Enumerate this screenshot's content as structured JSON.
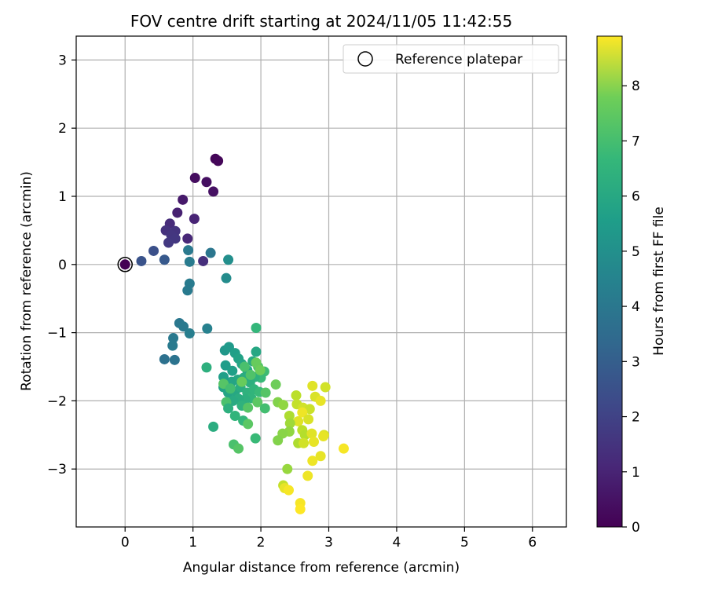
{
  "chart_data": {
    "type": "scatter",
    "title": "FOV centre drift starting at 2024/11/05 11:42:55",
    "xlabel": "Angular distance from reference (arcmin)",
    "ylabel": "Rotation from reference (arcmin)",
    "xlim": [
      -0.72,
      6.5
    ],
    "ylim": [
      -3.85,
      3.35
    ],
    "xticks": [
      0,
      1,
      2,
      3,
      4,
      5,
      6
    ],
    "yticks": [
      -3,
      -2,
      -1,
      0,
      1,
      2,
      3
    ],
    "xtick_labels": [
      "0",
      "1",
      "2",
      "3",
      "4",
      "5",
      "6"
    ],
    "ytick_labels": [
      "−3",
      "−2",
      "−1",
      "0",
      "1",
      "2",
      "3"
    ],
    "grid": true,
    "legend": {
      "position": "top-right",
      "label": "Reference platepar"
    },
    "reference_point": {
      "x": 0,
      "y": 0
    },
    "colorbar": {
      "label": "Hours from first FF file",
      "range": [
        0,
        8.9
      ],
      "ticks": [
        0,
        1,
        2,
        3,
        4,
        5,
        6,
        7,
        8
      ],
      "tick_labels": [
        "0",
        "1",
        "2",
        "3",
        "4",
        "5",
        "6",
        "7",
        "8"
      ],
      "colormap": "viridis"
    },
    "points": [
      {
        "x": 0.0,
        "y": 0.0,
        "h": 0.0
      },
      {
        "x": 1.33,
        "y": 1.55,
        "h": 0.1
      },
      {
        "x": 1.37,
        "y": 1.52,
        "h": 0.15
      },
      {
        "x": 1.03,
        "y": 1.27,
        "h": 0.3
      },
      {
        "x": 1.2,
        "y": 1.21,
        "h": 0.35
      },
      {
        "x": 1.3,
        "y": 1.07,
        "h": 0.4
      },
      {
        "x": 0.85,
        "y": 0.95,
        "h": 0.6
      },
      {
        "x": 0.77,
        "y": 0.76,
        "h": 0.8
      },
      {
        "x": 1.02,
        "y": 0.67,
        "h": 0.9
      },
      {
        "x": 0.66,
        "y": 0.6,
        "h": 1.1
      },
      {
        "x": 0.6,
        "y": 0.5,
        "h": 1.3
      },
      {
        "x": 0.74,
        "y": 0.49,
        "h": 1.35
      },
      {
        "x": 0.68,
        "y": 0.43,
        "h": 1.4
      },
      {
        "x": 0.74,
        "y": 0.38,
        "h": 1.45
      },
      {
        "x": 0.64,
        "y": 0.32,
        "h": 1.5
      },
      {
        "x": 0.92,
        "y": 0.38,
        "h": 1.0
      },
      {
        "x": 1.15,
        "y": 0.05,
        "h": 1.2
      },
      {
        "x": 0.42,
        "y": 0.2,
        "h": 2.2
      },
      {
        "x": 0.24,
        "y": 0.05,
        "h": 2.3
      },
      {
        "x": 0.58,
        "y": 0.07,
        "h": 2.5
      },
      {
        "x": 0.93,
        "y": 0.21,
        "h": 3.6
      },
      {
        "x": 0.95,
        "y": 0.04,
        "h": 3.7
      },
      {
        "x": 1.26,
        "y": 0.17,
        "h": 3.5
      },
      {
        "x": 1.52,
        "y": 0.07,
        "h": 4.4
      },
      {
        "x": 0.95,
        "y": -0.28,
        "h": 3.7
      },
      {
        "x": 0.92,
        "y": -0.38,
        "h": 3.65
      },
      {
        "x": 1.49,
        "y": -0.2,
        "h": 4.3
      },
      {
        "x": 0.8,
        "y": -0.86,
        "h": 3.55
      },
      {
        "x": 0.86,
        "y": -0.91,
        "h": 3.6
      },
      {
        "x": 1.21,
        "y": -0.94,
        "h": 3.9
      },
      {
        "x": 0.95,
        "y": -1.01,
        "h": 3.8
      },
      {
        "x": 0.71,
        "y": -1.08,
        "h": 3.6
      },
      {
        "x": 0.7,
        "y": -1.19,
        "h": 3.65
      },
      {
        "x": 0.58,
        "y": -1.39,
        "h": 3.3
      },
      {
        "x": 0.73,
        "y": -1.4,
        "h": 3.4
      },
      {
        "x": 1.93,
        "y": -0.93,
        "h": 5.9
      },
      {
        "x": 1.47,
        "y": -1.26,
        "h": 4.7
      },
      {
        "x": 1.53,
        "y": -1.21,
        "h": 4.8
      },
      {
        "x": 1.62,
        "y": -1.3,
        "h": 5.0
      },
      {
        "x": 1.67,
        "y": -1.38,
        "h": 5.1
      },
      {
        "x": 1.48,
        "y": -1.48,
        "h": 4.9
      },
      {
        "x": 1.58,
        "y": -1.56,
        "h": 5.0
      },
      {
        "x": 1.72,
        "y": -1.46,
        "h": 5.2
      },
      {
        "x": 1.8,
        "y": -1.55,
        "h": 5.3
      },
      {
        "x": 1.88,
        "y": -1.42,
        "h": 5.4
      },
      {
        "x": 1.93,
        "y": -1.28,
        "h": 5.3
      },
      {
        "x": 1.96,
        "y": -1.5,
        "h": 6.4
      },
      {
        "x": 2.05,
        "y": -1.57,
        "h": 6.1
      },
      {
        "x": 2.0,
        "y": -1.66,
        "h": 6.0
      },
      {
        "x": 1.91,
        "y": -1.65,
        "h": 5.7
      },
      {
        "x": 1.84,
        "y": -1.73,
        "h": 5.6
      },
      {
        "x": 1.75,
        "y": -1.66,
        "h": 5.5
      },
      {
        "x": 1.66,
        "y": -1.69,
        "h": 5.3
      },
      {
        "x": 1.57,
        "y": -1.72,
        "h": 5.2
      },
      {
        "x": 1.45,
        "y": -1.65,
        "h": 5.0
      },
      {
        "x": 1.45,
        "y": -1.8,
        "h": 5.1
      },
      {
        "x": 1.52,
        "y": -1.88,
        "h": 5.2
      },
      {
        "x": 1.62,
        "y": -1.86,
        "h": 5.3
      },
      {
        "x": 1.7,
        "y": -1.8,
        "h": 5.5
      },
      {
        "x": 1.8,
        "y": -1.88,
        "h": 5.7
      },
      {
        "x": 1.9,
        "y": -1.83,
        "h": 5.8
      },
      {
        "x": 1.98,
        "y": -1.87,
        "h": 6.0
      },
      {
        "x": 1.86,
        "y": -1.96,
        "h": 5.8
      },
      {
        "x": 1.77,
        "y": -1.98,
        "h": 5.6
      },
      {
        "x": 1.67,
        "y": -1.97,
        "h": 5.5
      },
      {
        "x": 1.59,
        "y": -2.0,
        "h": 5.4
      },
      {
        "x": 1.49,
        "y": -2.02,
        "h": 6.3
      },
      {
        "x": 1.52,
        "y": -2.11,
        "h": 5.6
      },
      {
        "x": 1.72,
        "y": -2.07,
        "h": 5.7
      },
      {
        "x": 1.81,
        "y": -2.1,
        "h": 6.5
      },
      {
        "x": 1.95,
        "y": -2.02,
        "h": 6.6
      },
      {
        "x": 2.07,
        "y": -1.88,
        "h": 6.5
      },
      {
        "x": 2.06,
        "y": -2.11,
        "h": 6.2
      },
      {
        "x": 1.62,
        "y": -2.22,
        "h": 5.8
      },
      {
        "x": 1.74,
        "y": -2.29,
        "h": 5.9
      },
      {
        "x": 1.81,
        "y": -2.34,
        "h": 6.6
      },
      {
        "x": 1.3,
        "y": -2.38,
        "h": 5.5
      },
      {
        "x": 1.6,
        "y": -2.64,
        "h": 6.3
      },
      {
        "x": 1.67,
        "y": -2.7,
        "h": 6.5
      },
      {
        "x": 1.92,
        "y": -2.55,
        "h": 6.0
      },
      {
        "x": 1.2,
        "y": -1.51,
        "h": 5.6
      },
      {
        "x": 1.93,
        "y": -1.44,
        "h": 6.8
      },
      {
        "x": 1.99,
        "y": -1.55,
        "h": 6.9
      },
      {
        "x": 1.76,
        "y": -1.5,
        "h": 6.3
      },
      {
        "x": 1.85,
        "y": -1.62,
        "h": 6.4
      },
      {
        "x": 1.72,
        "y": -1.72,
        "h": 6.8
      },
      {
        "x": 1.45,
        "y": -1.75,
        "h": 6.5
      },
      {
        "x": 1.55,
        "y": -1.82,
        "h": 6.2
      },
      {
        "x": 2.22,
        "y": -1.76,
        "h": 6.9
      },
      {
        "x": 2.25,
        "y": -2.02,
        "h": 7.2
      },
      {
        "x": 2.33,
        "y": -2.06,
        "h": 7.4
      },
      {
        "x": 2.52,
        "y": -1.92,
        "h": 8.0
      },
      {
        "x": 2.42,
        "y": -2.22,
        "h": 7.8
      },
      {
        "x": 2.53,
        "y": -2.05,
        "h": 8.1
      },
      {
        "x": 2.62,
        "y": -2.1,
        "h": 8.3
      },
      {
        "x": 2.72,
        "y": -2.12,
        "h": 8.2
      },
      {
        "x": 2.8,
        "y": -1.94,
        "h": 8.4
      },
      {
        "x": 2.76,
        "y": -1.78,
        "h": 8.5
      },
      {
        "x": 2.95,
        "y": -1.8,
        "h": 8.3
      },
      {
        "x": 2.88,
        "y": -2.0,
        "h": 8.6
      },
      {
        "x": 2.61,
        "y": -2.17,
        "h": 8.7
      },
      {
        "x": 2.55,
        "y": -2.3,
        "h": 8.5
      },
      {
        "x": 2.43,
        "y": -2.33,
        "h": 7.6
      },
      {
        "x": 2.42,
        "y": -2.45,
        "h": 7.4
      },
      {
        "x": 2.32,
        "y": -2.48,
        "h": 7.3
      },
      {
        "x": 2.25,
        "y": -2.58,
        "h": 7.2
      },
      {
        "x": 2.61,
        "y": -2.43,
        "h": 8.0
      },
      {
        "x": 2.65,
        "y": -2.5,
        "h": 7.9
      },
      {
        "x": 2.55,
        "y": -2.62,
        "h": 7.8
      },
      {
        "x": 2.63,
        "y": -2.62,
        "h": 8.3
      },
      {
        "x": 2.7,
        "y": -2.27,
        "h": 8.4
      },
      {
        "x": 2.75,
        "y": -2.48,
        "h": 8.5
      },
      {
        "x": 2.78,
        "y": -2.6,
        "h": 8.6
      },
      {
        "x": 2.93,
        "y": -2.5,
        "h": 8.4
      },
      {
        "x": 2.92,
        "y": -2.52,
        "h": 8.6
      },
      {
        "x": 2.88,
        "y": -2.81,
        "h": 8.6
      },
      {
        "x": 2.76,
        "y": -2.88,
        "h": 8.7
      },
      {
        "x": 3.22,
        "y": -2.7,
        "h": 8.8
      },
      {
        "x": 2.39,
        "y": -3.0,
        "h": 7.5
      },
      {
        "x": 2.33,
        "y": -3.24,
        "h": 8.1
      },
      {
        "x": 2.35,
        "y": -3.28,
        "h": 8.6
      },
      {
        "x": 2.41,
        "y": -3.31,
        "h": 8.8
      },
      {
        "x": 2.69,
        "y": -3.1,
        "h": 8.7
      },
      {
        "x": 2.58,
        "y": -3.5,
        "h": 8.8
      },
      {
        "x": 2.58,
        "y": -3.59,
        "h": 8.9
      }
    ]
  }
}
